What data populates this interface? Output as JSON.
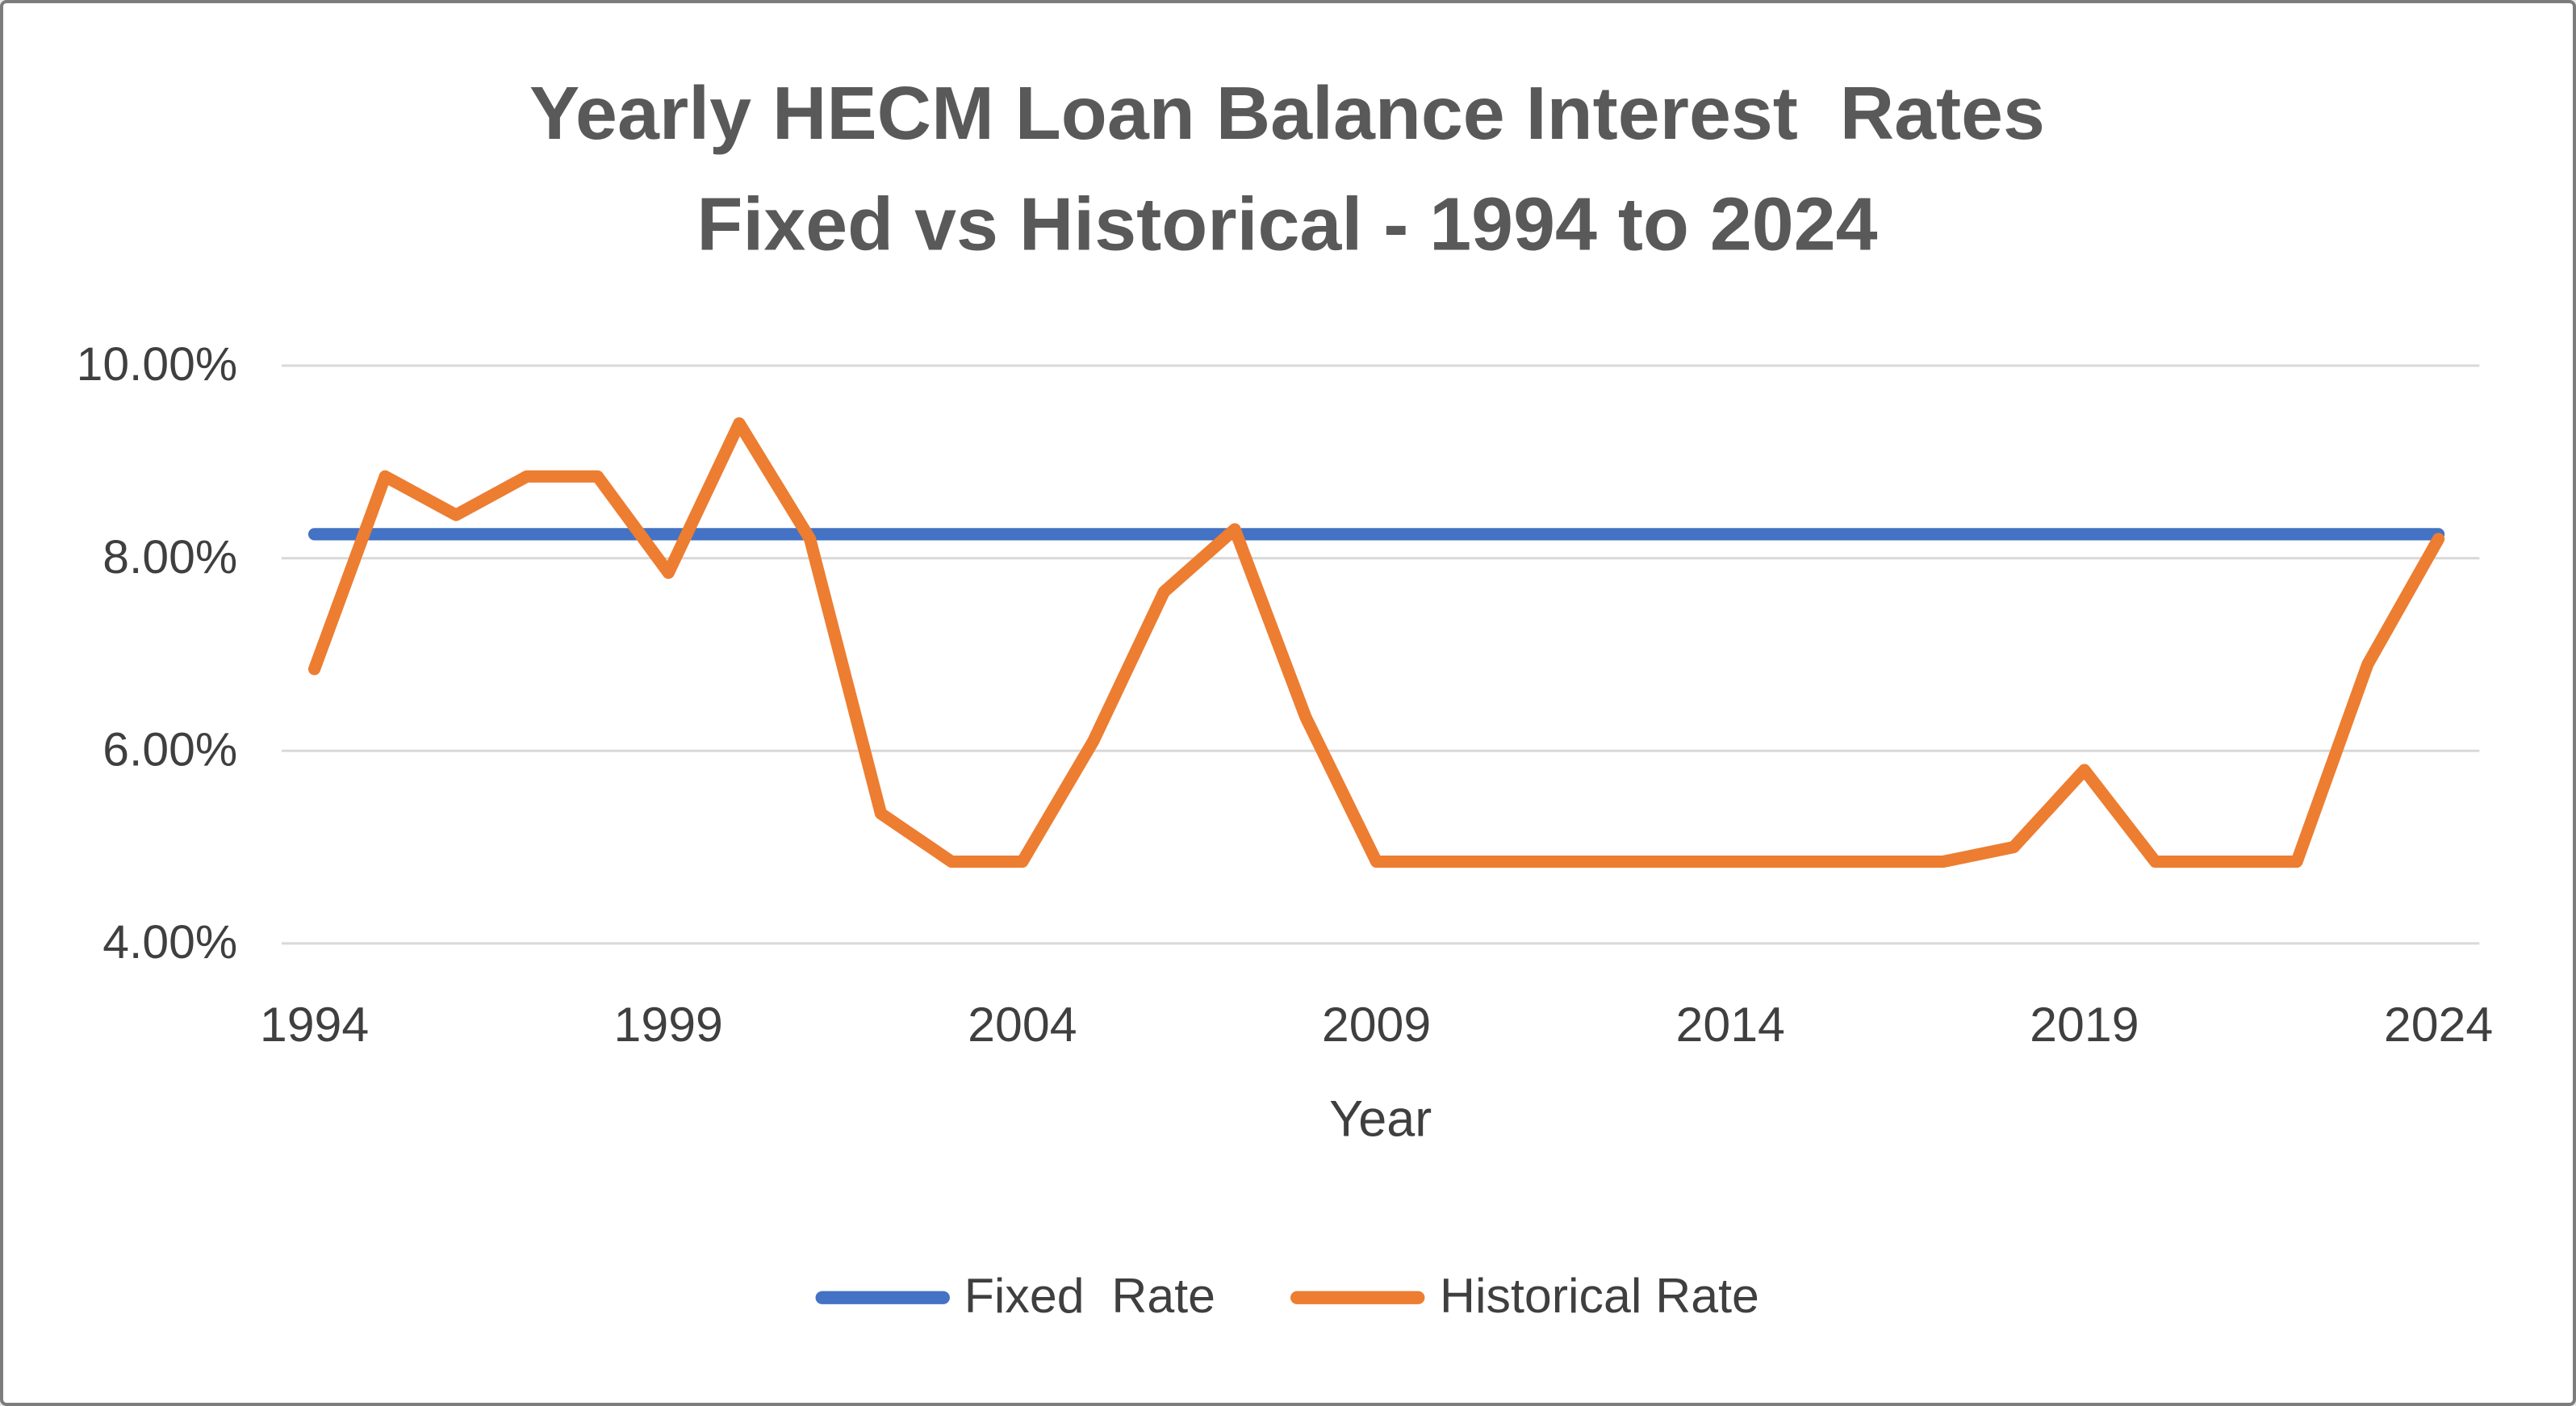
{
  "title": {
    "line1": "Yearly HECM Loan Balance Interest  Rates",
    "line2": "Fixed vs Historical - 1994 to 2024"
  },
  "x_axis": {
    "title": "Year",
    "ticks": [
      "1994",
      "1999",
      "2004",
      "2009",
      "2014",
      "2019",
      "2024"
    ]
  },
  "y_axis": {
    "ticks": [
      "10.00%",
      "8.00%",
      "6.00%",
      "4.00%"
    ],
    "tick_values": [
      10,
      8,
      6,
      4
    ]
  },
  "legend": {
    "items": [
      {
        "label": "Fixed  Rate",
        "color": "#4472C4"
      },
      {
        "label": "Historical Rate",
        "color": "#ED7D31"
      }
    ]
  },
  "colors": {
    "fixed": "#4472C4",
    "historical": "#ED7D31",
    "gridline": "#D9D9D9",
    "title_text": "#595959",
    "axis_text": "#3F3F3F",
    "border": "#7C7C7C",
    "background": "#FFFFFF"
  },
  "chart_data": {
    "type": "line",
    "title": "Yearly HECM Loan Balance Interest  Rates\nFixed vs Historical - 1994 to 2024",
    "xlabel": "Year",
    "ylabel": "",
    "xlim": [
      1994,
      2024
    ],
    "ylim": [
      4,
      10
    ],
    "grid": true,
    "legend_position": "bottom",
    "x": [
      1994,
      1995,
      1996,
      1997,
      1998,
      1999,
      2000,
      2001,
      2002,
      2003,
      2004,
      2005,
      2006,
      2007,
      2008,
      2009,
      2010,
      2011,
      2012,
      2013,
      2014,
      2015,
      2016,
      2017,
      2018,
      2019,
      2020,
      2021,
      2022,
      2023,
      2024
    ],
    "series": [
      {
        "name": "Fixed Rate",
        "color": "#4472C4",
        "values": [
          8.25,
          8.25,
          8.25,
          8.25,
          8.25,
          8.25,
          8.25,
          8.25,
          8.25,
          8.25,
          8.25,
          8.25,
          8.25,
          8.25,
          8.25,
          8.25,
          8.25,
          8.25,
          8.25,
          8.25,
          8.25,
          8.25,
          8.25,
          8.25,
          8.25,
          8.25,
          8.25,
          8.25,
          8.25,
          8.25,
          8.25
        ]
      },
      {
        "name": "Historical Rate",
        "color": "#ED7D31",
        "values": [
          6.85,
          8.85,
          8.45,
          8.85,
          8.85,
          7.85,
          9.4,
          8.2,
          5.35,
          4.85,
          4.85,
          6.1,
          7.65,
          8.3,
          6.35,
          4.85,
          4.85,
          4.85,
          4.85,
          4.85,
          4.85,
          4.85,
          4.85,
          4.85,
          5.0,
          5.8,
          4.85,
          4.85,
          4.85,
          6.9,
          8.2
        ]
      }
    ]
  }
}
